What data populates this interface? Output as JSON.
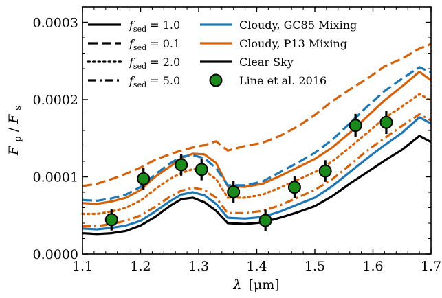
{
  "chart_data": {
    "type": "line",
    "x_axis": {
      "label_symbol": "λ",
      "label_unit": "[μm]",
      "range": [
        1.1,
        1.7
      ],
      "ticks": [
        1.1,
        1.2,
        1.3,
        1.4,
        1.5,
        1.6,
        1.7
      ],
      "tick_labels": [
        "1.1",
        "1.2",
        "1.3",
        "1.4",
        "1.5",
        "1.6",
        "1.7"
      ]
    },
    "y_axis": {
      "label_main": "F",
      "label_main_sub": "p",
      "label_sep": "/",
      "label_den": "F",
      "label_den_sub": "s",
      "range": [
        0,
        0.00032
      ],
      "ticks": [
        0,
        0.0001,
        0.0002,
        0.0003
      ],
      "tick_labels": [
        "0.0000",
        "0.0001",
        "0.0002",
        "0.0003"
      ]
    },
    "grid": false,
    "legend": {
      "placement": "top",
      "left_column": [
        {
          "symbol": "f",
          "sub": "sed",
          "text": " = 1.0",
          "dash": "solid"
        },
        {
          "symbol": "f",
          "sub": "sed",
          "text": " = 0.1",
          "dash": "dashed"
        },
        {
          "symbol": "f",
          "sub": "sed",
          "text": " = 2.0",
          "dash": "dotted"
        },
        {
          "symbol": "f",
          "sub": "sed",
          "text": " = 5.0",
          "dash": "dashdot"
        }
      ],
      "right_column": [
        {
          "label": "Cloudy, GC85 Mixing",
          "kind": "line",
          "color": "#1f77b4"
        },
        {
          "label": "Cloudy, P13 Mixing",
          "kind": "line",
          "color": "#d4620b"
        },
        {
          "label": "Clear Sky",
          "kind": "line",
          "color": "#000000"
        },
        {
          "label": "Line et al. 2016",
          "kind": "marker",
          "color": "#1a8a1a"
        }
      ]
    },
    "colors": {
      "gc85": "#1f77b4",
      "p13": "#d4620b",
      "clear": "#000000",
      "data": "#1a8a1a"
    },
    "x": [
      1.1,
      1.125,
      1.15,
      1.175,
      1.2,
      1.225,
      1.25,
      1.27,
      1.29,
      1.31,
      1.33,
      1.35,
      1.38,
      1.41,
      1.44,
      1.47,
      1.5,
      1.53,
      1.56,
      1.59,
      1.62,
      1.65,
      1.68,
      1.7
    ],
    "series": [
      {
        "key": "clear",
        "color": "#000000",
        "dash": "solid",
        "values": [
          2.7e-05,
          2.6e-05,
          2.7e-05,
          3e-05,
          3.7e-05,
          4.8e-05,
          6.2e-05,
          7.1e-05,
          7.3e-05,
          6.7e-05,
          5.6e-05,
          4e-05,
          3.9e-05,
          4.1e-05,
          4.7e-05,
          5.4e-05,
          6.2e-05,
          7.5e-05,
          9.1e-05,
          0.000106,
          0.000121,
          0.000135,
          0.000153,
          0.000145
        ]
      },
      {
        "key": "gc85_f1",
        "color": "#1f77b4",
        "dash": "solid",
        "values": [
          3.3e-05,
          3.2e-05,
          3.4e-05,
          3.7e-05,
          4.3e-05,
          5.5e-05,
          6.8e-05,
          7.7e-05,
          8e-05,
          7.6e-05,
          6.5e-05,
          4.7e-05,
          4.6e-05,
          4.8e-05,
          5.5e-05,
          6.4e-05,
          7.3e-05,
          8.8e-05,
          0.000106,
          0.000124,
          0.000141,
          0.000157,
          0.000177,
          0.000169
        ]
      },
      {
        "key": "p13_f1",
        "color": "#d4620b",
        "dash": "solid",
        "values": [
          6.6e-05,
          6.5e-05,
          6.8e-05,
          7.3e-05,
          8.3e-05,
          0.0001,
          0.000113,
          0.000124,
          0.00013,
          0.000129,
          0.000118,
          8.8e-05,
          8.7e-05,
          9.1e-05,
          0.000101,
          0.000112,
          0.000123,
          0.000138,
          0.000157,
          0.000178,
          0.000199,
          0.000217,
          0.000236,
          0.000225
        ]
      },
      {
        "key": "gc85_f01",
        "color": "#1f77b4",
        "dash": "dashed",
        "values": [
          7e-05,
          6.9e-05,
          7.2e-05,
          7.7e-05,
          8.7e-05,
          0.000103,
          0.000117,
          0.000126,
          0.000128,
          0.000124,
          0.000111,
          8.9e-05,
          8.9e-05,
          9.4e-05,
          0.000106,
          0.000118,
          0.000131,
          0.000148,
          0.000169,
          0.000191,
          0.000211,
          0.000227,
          0.000242,
          0.000235
        ]
      },
      {
        "key": "p13_f01",
        "color": "#d4620b",
        "dash": "dashed",
        "values": [
          8.8e-05,
          9.1e-05,
          9.7e-05,
          0.000104,
          0.000112,
          0.000122,
          0.000129,
          0.000134,
          0.000138,
          0.000141,
          0.000146,
          0.000134,
          0.00014,
          0.000144,
          0.000153,
          0.000165,
          0.00018,
          0.000198,
          0.000213,
          0.000227,
          0.000243,
          0.000253,
          0.000266,
          0.000272
        ]
      },
      {
        "key": "p13_f2",
        "color": "#d4620b",
        "dash": "dotted",
        "values": [
          5.2e-05,
          5.2e-05,
          5.5e-05,
          6e-05,
          6.9e-05,
          8.4e-05,
          9.7e-05,
          0.000105,
          0.00011,
          0.000108,
          9.7e-05,
          7.3e-05,
          7.3e-05,
          7.7e-05,
          8.6e-05,
          9.6e-05,
          0.000106,
          0.00012,
          0.000138,
          0.000157,
          0.000176,
          0.000191,
          0.000207,
          0.000199
        ]
      },
      {
        "key": "p13_f5",
        "color": "#d4620b",
        "dash": "dashdot",
        "values": [
          3.6e-05,
          3.6e-05,
          3.9e-05,
          4.3e-05,
          5e-05,
          6.1e-05,
          7.4e-05,
          8.2e-05,
          8.6e-05,
          8.3e-05,
          7.3e-05,
          5.3e-05,
          5.3e-05,
          5.6e-05,
          6.3e-05,
          7.3e-05,
          8.3e-05,
          9.7e-05,
          0.000115,
          0.000134,
          0.00015,
          0.000166,
          0.000181,
          0.000173
        ]
      }
    ],
    "observations": {
      "label": "Line et al. 2016",
      "x": [
        1.15,
        1.205,
        1.27,
        1.305,
        1.36,
        1.415,
        1.465,
        1.518,
        1.57,
        1.623
      ],
      "y": [
        4.45e-05,
        9.75e-05,
        0.0001155,
        0.0001095,
        8.05e-05,
        4.35e-05,
        8.65e-05,
        0.0001075,
        0.0001665,
        0.0001705
      ],
      "yerr": [
        1.4e-05,
        1.4e-05,
        1.4e-05,
        1.4e-05,
        1.4e-05,
        1.4e-05,
        1.4e-05,
        1.4e-05,
        1.5e-05,
        1.5e-05
      ]
    }
  }
}
